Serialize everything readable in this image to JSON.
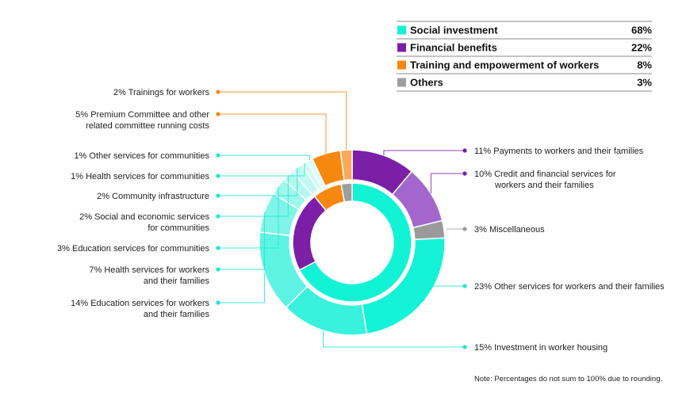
{
  "chart_data": {
    "type": "pie",
    "legend": [
      {
        "key": "social",
        "label": "Social investment",
        "value": "68%",
        "color": "#12f3d6"
      },
      {
        "key": "financial",
        "label": "Financial benefits",
        "value": "22%",
        "color": "#7b1fa6"
      },
      {
        "key": "training",
        "label": "Training and empowerment of workers",
        "value": "8%",
        "color": "#f7880f"
      },
      {
        "key": "others",
        "label": "Others",
        "value": "3%",
        "color": "#9e9e9e"
      }
    ],
    "inner_ring": [
      {
        "key": "social",
        "value": 68
      },
      {
        "key": "financial",
        "value": 22
      },
      {
        "key": "training",
        "value": 8
      },
      {
        "key": "others",
        "value": 3
      }
    ],
    "outer_ring": [
      {
        "category": "financial",
        "value": 11,
        "pct": "11%",
        "label": [
          "Payments to workers and their families"
        ],
        "color": "#7b1fa6"
      },
      {
        "category": "financial",
        "value": 10,
        "pct": "10%",
        "label": [
          "Credit and financial services for",
          "workers and their families"
        ],
        "color": "#a366cd"
      },
      {
        "category": "others",
        "value": 3,
        "pct": "3%",
        "label": [
          "Miscellaneous"
        ],
        "color": "#9a9a9a"
      },
      {
        "category": "social",
        "value": 23,
        "pct": "23%",
        "label": [
          "Other services for workers and their families"
        ],
        "color": "#14f3d7"
      },
      {
        "category": "social",
        "value": 15,
        "pct": "15%",
        "label": [
          "Investment in worker housing"
        ],
        "color": "#38f2dd"
      },
      {
        "category": "social",
        "value": 14,
        "pct": "14%",
        "label": [
          "Education services for workers",
          "and their families"
        ],
        "color": "#5ef3e3"
      },
      {
        "category": "social",
        "value": 7,
        "pct": "7%",
        "label": [
          "Health services for workers",
          "and their families"
        ],
        "color": "#7ff5e8"
      },
      {
        "category": "social",
        "value": 3,
        "pct": "3%",
        "label": [
          "Education services for communities"
        ],
        "color": "#9ff7ec"
      },
      {
        "category": "social",
        "value": 2,
        "pct": "2%",
        "label": [
          "Social and economic services",
          "for communities"
        ],
        "color": "#b2f8f0"
      },
      {
        "category": "social",
        "value": 2,
        "pct": "2%",
        "label": [
          "Community infrastructure"
        ],
        "color": "#c2faf3"
      },
      {
        "category": "social",
        "value": 1,
        "pct": "1%",
        "label": [
          "Health services for communities"
        ],
        "color": "#d0fbf6"
      },
      {
        "category": "social",
        "value": 1,
        "pct": "1%",
        "label": [
          "Other services for communities"
        ],
        "color": "#dcfcf8"
      },
      {
        "category": "training",
        "value": 5,
        "pct": "5%",
        "label": [
          "Premium Committee and other",
          "related committee running costs"
        ],
        "color": "#f7880f"
      },
      {
        "category": "training",
        "value": 2,
        "pct": "2%",
        "label": [
          "Trainings for workers"
        ],
        "color": "#f9a95b"
      }
    ],
    "note": "Note: Percentages do not sum to 100% due to rounding."
  }
}
